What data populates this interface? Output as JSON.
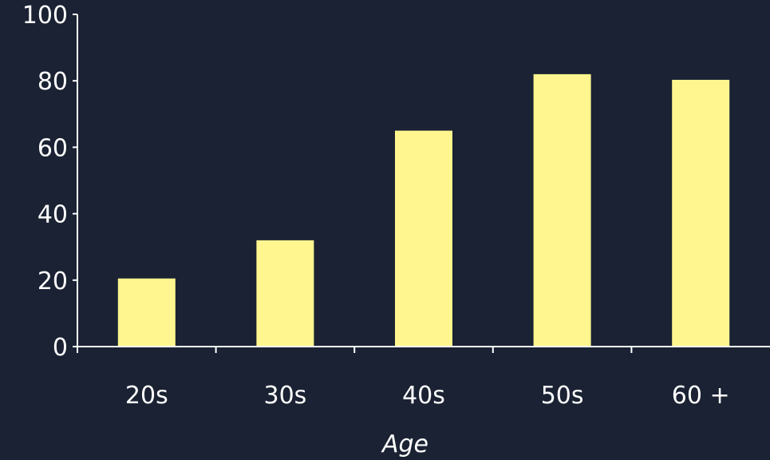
{
  "chart_data": {
    "type": "bar",
    "categories": [
      "20s",
      "30s",
      "40s",
      "50s",
      "60 +"
    ],
    "values": [
      20.5,
      32,
      65,
      82,
      80.3
    ],
    "title": "",
    "xlabel": "Age",
    "ylabel": "",
    "ylim": [
      0,
      100
    ],
    "yticks": [
      "0",
      "20",
      "40",
      "60",
      "80",
      "100"
    ],
    "grid": false,
    "bar_color": "#fff68f",
    "axis_color": "#ffffff",
    "background_color": "#1a2233"
  }
}
